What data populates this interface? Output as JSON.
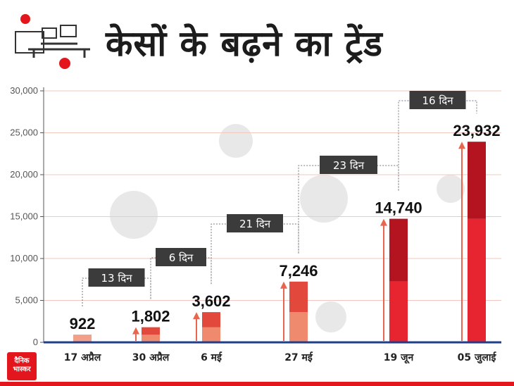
{
  "title": "केसों के बढ़ने का ट्रेंड",
  "logo": {
    "line1": "दैनिक",
    "line2": "भास्कर"
  },
  "chart_data": {
    "type": "bar",
    "categories": [
      "17 अप्रैल",
      "30 अप्रैल",
      "6 मई",
      "27 मई",
      "19 जून",
      "05 जुलाई"
    ],
    "values": [
      922,
      1802,
      3602,
      7246,
      14740,
      23932
    ],
    "value_labels": [
      "922",
      "1,802",
      "3,602",
      "7,246",
      "14,740",
      "23,932"
    ],
    "ylim": [
      0,
      30000
    ],
    "yticks": [
      0,
      5000,
      10000,
      15000,
      20000,
      25000,
      30000
    ],
    "ytick_labels": [
      "0",
      "5,000",
      "10,000",
      "15,000",
      "20,000",
      "25,000",
      "30,000"
    ],
    "grid": true,
    "gaps": [
      {
        "label": "13 दिन",
        "from": 0,
        "to": 1
      },
      {
        "label": "6 दिन",
        "from": 1,
        "to": 2
      },
      {
        "label": "21 दिन",
        "from": 2,
        "to": 3
      },
      {
        "label": "23 दिन",
        "from": 3,
        "to": 4
      },
      {
        "label": "16 दिन",
        "from": 4,
        "to": 5
      }
    ],
    "colors": {
      "bar_dark": "#e62530",
      "bar_light": "#f3a08a",
      "arrow": "#e8664d",
      "gap_box": "#3b3b3b",
      "axis": "#1f3f8a",
      "grid": "#f2c7bf"
    }
  }
}
